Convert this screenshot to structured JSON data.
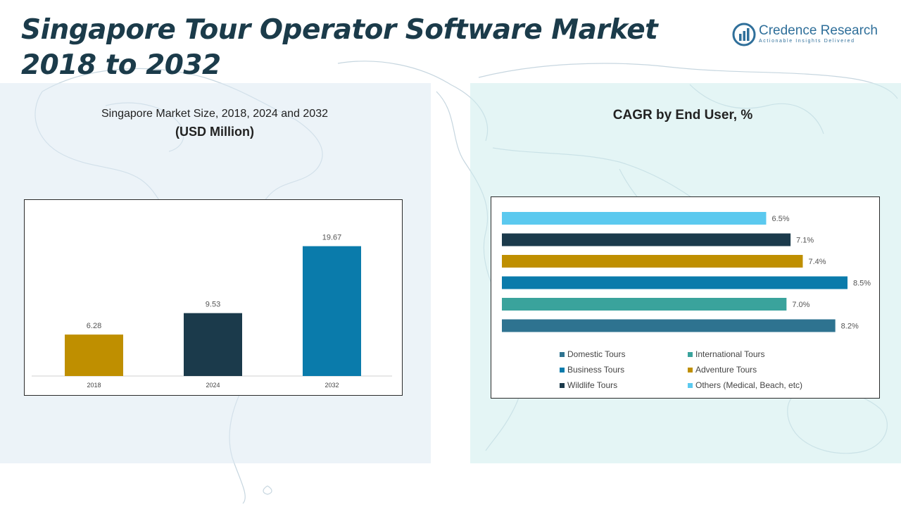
{
  "page": {
    "title": "Singapore Tour Operator Software Market 2018 to 2032"
  },
  "logo": {
    "name": "Credence Research",
    "tagline": "Actionable Insights Delivered",
    "icon": "bar-chart-logo-icon"
  },
  "left_chart": {
    "title_line1": "Singapore Market Size, 2018, 2024 and 2032",
    "title_line2": "(USD Million)"
  },
  "right_chart": {
    "title": "CAGR by End User, %"
  },
  "chart_data": [
    {
      "type": "bar",
      "title": "Singapore Market Size, 2018, 2024 and 2032",
      "ylabel": "(USD Million)",
      "categories": [
        "2018",
        "2024",
        "2032"
      ],
      "values": [
        6.28,
        9.53,
        19.67
      ],
      "value_labels": [
        "6.28",
        "9.53",
        "19.67"
      ],
      "colors": [
        "#bf8f00",
        "#1b3a4b",
        "#0a7bab"
      ],
      "ylim": [
        0,
        24
      ],
      "grid": false,
      "legend": "none"
    },
    {
      "type": "bar",
      "orientation": "horizontal",
      "title": "CAGR by End User, %",
      "series": [
        {
          "name": "Domestic Tours",
          "value": 8.2,
          "label": "8.2%",
          "color": "#2e7390"
        },
        {
          "name": "International Tours",
          "value": 7.0,
          "label": "7.0%",
          "color": "#3aa39c"
        },
        {
          "name": "Business Tours",
          "value": 8.5,
          "label": "8.5%",
          "color": "#0a7bab"
        },
        {
          "name": "Adventure Tours",
          "value": 7.4,
          "label": "7.4%",
          "color": "#bf8f00"
        },
        {
          "name": "Wildlife Tours",
          "value": 7.1,
          "label": "7.1%",
          "color": "#1b3a4b"
        },
        {
          "name": "Others (Medical, Beach, etc)",
          "value": 6.5,
          "label": "6.5%",
          "color": "#5bc9ef"
        }
      ],
      "xlim": [
        0,
        8.5
      ],
      "grid": false,
      "legend": "bottom"
    }
  ]
}
